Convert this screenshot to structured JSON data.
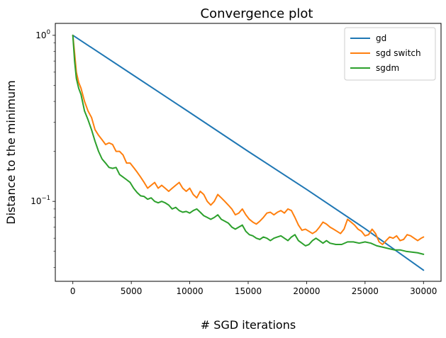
{
  "chart_data": {
    "type": "line",
    "title": "Convergence plot",
    "xlabel": "# SGD iterations",
    "ylabel": "Distance to the minimum",
    "xlim": [
      -1500,
      31500
    ],
    "ylim": [
      0.033,
      1.18
    ],
    "yscale": "log",
    "grid": false,
    "legend_position": "top-right",
    "x_ticks": [
      0,
      5000,
      10000,
      15000,
      20000,
      25000,
      30000
    ],
    "x_tick_labels": [
      "0",
      "5000",
      "10000",
      "15000",
      "20000",
      "25000",
      "30000"
    ],
    "y_major_ticks": [
      {
        "value": 1.0,
        "base": "10",
        "exp": "0"
      },
      {
        "value": 0.1,
        "base": "10",
        "exp": "−1"
      }
    ],
    "series": [
      {
        "name": "gd",
        "color": "#1f77b4",
        "x": [
          0,
          5000,
          10000,
          15000,
          20000,
          25000,
          30000
        ],
        "y": [
          1.0,
          0.586,
          0.343,
          0.2,
          0.118,
          0.0685,
          0.0385
        ]
      },
      {
        "name": "sgd switch",
        "color": "#ff7f0e",
        "x": [
          0,
          150,
          300,
          500,
          700,
          1000,
          1300,
          1600,
          1900,
          2200,
          2500,
          2800,
          3100,
          3400,
          3700,
          4000,
          4300,
          4600,
          4900,
          5200,
          5500,
          5800,
          6100,
          6400,
          6700,
          7000,
          7300,
          7600,
          7900,
          8200,
          8500,
          8800,
          9100,
          9400,
          9700,
          10000,
          10300,
          10600,
          10900,
          11200,
          11500,
          11800,
          12100,
          12400,
          12700,
          13000,
          13300,
          13600,
          13900,
          14200,
          14500,
          14800,
          15100,
          15400,
          15700,
          16000,
          16300,
          16600,
          16900,
          17200,
          17500,
          17800,
          18100,
          18400,
          18700,
          19000,
          19300,
          19600,
          19900,
          20200,
          20500,
          20800,
          21100,
          21400,
          21700,
          22000,
          22300,
          22600,
          22900,
          23200,
          23500,
          23800,
          24100,
          24400,
          24700,
          25000,
          25300,
          25600,
          25900,
          26200,
          26500,
          26800,
          27100,
          27400,
          27700,
          28000,
          28300,
          28600,
          28900,
          29200,
          29500,
          29800,
          30000
        ],
        "y": [
          1.0,
          0.78,
          0.6,
          0.52,
          0.48,
          0.4,
          0.35,
          0.32,
          0.27,
          0.25,
          0.235,
          0.22,
          0.225,
          0.22,
          0.2,
          0.2,
          0.19,
          0.17,
          0.17,
          0.16,
          0.15,
          0.14,
          0.13,
          0.12,
          0.125,
          0.13,
          0.12,
          0.125,
          0.12,
          0.115,
          0.12,
          0.125,
          0.13,
          0.12,
          0.115,
          0.12,
          0.11,
          0.105,
          0.115,
          0.11,
          0.1,
          0.095,
          0.1,
          0.11,
          0.105,
          0.1,
          0.095,
          0.09,
          0.083,
          0.085,
          0.09,
          0.083,
          0.078,
          0.075,
          0.073,
          0.076,
          0.08,
          0.085,
          0.086,
          0.083,
          0.086,
          0.088,
          0.085,
          0.09,
          0.088,
          0.08,
          0.072,
          0.067,
          0.068,
          0.066,
          0.064,
          0.066,
          0.07,
          0.075,
          0.073,
          0.07,
          0.068,
          0.066,
          0.064,
          0.068,
          0.078,
          0.075,
          0.072,
          0.068,
          0.066,
          0.062,
          0.063,
          0.068,
          0.064,
          0.057,
          0.055,
          0.058,
          0.061,
          0.06,
          0.062,
          0.058,
          0.059,
          0.063,
          0.062,
          0.06,
          0.058,
          0.06,
          0.061
        ]
      },
      {
        "name": "sgdm",
        "color": "#2ca02c",
        "x": [
          0,
          150,
          300,
          500,
          700,
          1000,
          1300,
          1600,
          1900,
          2200,
          2500,
          2800,
          3100,
          3400,
          3700,
          4000,
          4300,
          4600,
          4900,
          5200,
          5500,
          5800,
          6100,
          6400,
          6700,
          7000,
          7300,
          7600,
          7900,
          8200,
          8500,
          8800,
          9100,
          9400,
          9700,
          10000,
          10300,
          10600,
          10900,
          11200,
          11500,
          11800,
          12100,
          12400,
          12700,
          13000,
          13300,
          13600,
          13900,
          14200,
          14500,
          14800,
          15100,
          15400,
          15700,
          16000,
          16300,
          16600,
          16900,
          17200,
          17500,
          17800,
          18100,
          18400,
          18700,
          19000,
          19300,
          19600,
          19900,
          20200,
          20500,
          20800,
          21100,
          21400,
          21700,
          22000,
          22500,
          23000,
          23500,
          24000,
          24500,
          25000,
          25500,
          26000,
          26500,
          27000,
          27500,
          28000,
          28500,
          29000,
          29500,
          30000
        ],
        "y": [
          1.0,
          0.7,
          0.55,
          0.48,
          0.44,
          0.35,
          0.31,
          0.27,
          0.23,
          0.2,
          0.18,
          0.17,
          0.16,
          0.158,
          0.16,
          0.145,
          0.14,
          0.135,
          0.13,
          0.12,
          0.113,
          0.108,
          0.107,
          0.103,
          0.105,
          0.1,
          0.098,
          0.1,
          0.098,
          0.095,
          0.09,
          0.092,
          0.088,
          0.086,
          0.087,
          0.085,
          0.088,
          0.09,
          0.086,
          0.082,
          0.08,
          0.078,
          0.08,
          0.083,
          0.078,
          0.076,
          0.074,
          0.07,
          0.068,
          0.07,
          0.072,
          0.066,
          0.063,
          0.062,
          0.06,
          0.059,
          0.061,
          0.06,
          0.058,
          0.06,
          0.061,
          0.062,
          0.06,
          0.058,
          0.061,
          0.063,
          0.058,
          0.056,
          0.054,
          0.055,
          0.058,
          0.06,
          0.058,
          0.056,
          0.058,
          0.056,
          0.055,
          0.055,
          0.057,
          0.057,
          0.056,
          0.057,
          0.056,
          0.054,
          0.053,
          0.052,
          0.051,
          0.051,
          0.05,
          0.0495,
          0.049,
          0.048
        ]
      }
    ]
  }
}
